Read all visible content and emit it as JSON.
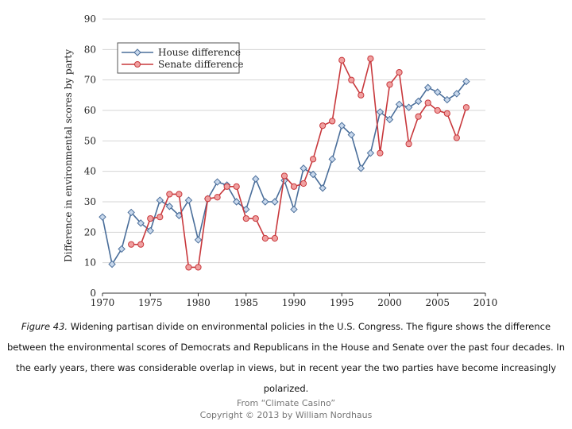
{
  "colors": {
    "house_line": "#4a6e9a",
    "house_marker_fill": "#c8d8ec",
    "senate_line": "#c8383c",
    "senate_marker_fill": "#f0a0a0"
  },
  "caption": {
    "figure_label": "Figure 43.",
    "text": " Widening partisan divide on environmental policies in the U.S. Congress. The figure shows the difference between the environmental scores of Democrats and Republicans in the House and Senate over the past four decades. In the early years, there was considerable overlap in views, but in recent year the two parties have become increasingly polarized."
  },
  "credit": {
    "line1": "From “Climate Casino”",
    "line2": "Copyright © 2013 by William Nordhaus"
  },
  "chart_data": {
    "type": "line",
    "title": "",
    "xlabel": "",
    "ylabel": "Difference in environmental scores by party",
    "xlim": [
      1970,
      2010
    ],
    "ylim": [
      0,
      90
    ],
    "xticks": [
      1970,
      1975,
      1980,
      1985,
      1990,
      1995,
      2000,
      2005,
      2010
    ],
    "yticks": [
      0,
      10,
      20,
      30,
      40,
      50,
      60,
      70,
      80,
      90
    ],
    "grid": "horizontal",
    "legend_position": "top-left",
    "series": [
      {
        "name": "House difference",
        "marker": "diamond",
        "points": [
          [
            1970,
            25
          ],
          [
            1971,
            9.5
          ],
          [
            1972,
            14.5
          ],
          [
            1973,
            26.5
          ],
          [
            1974,
            23
          ],
          [
            1975,
            20.5
          ],
          [
            1976,
            30.5
          ],
          [
            1977,
            28.5
          ],
          [
            1978,
            25.5
          ],
          [
            1979,
            30.5
          ],
          [
            1980,
            17.5
          ],
          [
            1981,
            31
          ],
          [
            1982,
            36.5
          ],
          [
            1983,
            35.5
          ],
          [
            1984,
            30
          ],
          [
            1985,
            27.5
          ],
          [
            1986,
            37.5
          ],
          [
            1987,
            30
          ],
          [
            1988,
            30
          ],
          [
            1989,
            37
          ],
          [
            1990,
            27.5
          ],
          [
            1991,
            41
          ],
          [
            1992,
            39
          ],
          [
            1993,
            34.5
          ],
          [
            1994,
            44
          ],
          [
            1995,
            55
          ],
          [
            1996,
            52
          ],
          [
            1997,
            41
          ],
          [
            1998,
            46
          ],
          [
            1999,
            59.5
          ],
          [
            2000,
            57
          ],
          [
            2001,
            62
          ],
          [
            2002,
            61
          ],
          [
            2003,
            63
          ],
          [
            2004,
            67.5
          ],
          [
            2005,
            66
          ],
          [
            2006,
            63.5
          ],
          [
            2007,
            65.5
          ],
          [
            2008,
            69.5
          ]
        ]
      },
      {
        "name": "Senate difference",
        "marker": "circle",
        "points": [
          [
            1973,
            16
          ],
          [
            1974,
            16
          ],
          [
            1975,
            24.5
          ],
          [
            1976,
            25
          ],
          [
            1977,
            32.5
          ],
          [
            1978,
            32.5
          ],
          [
            1979,
            8.5
          ],
          [
            1980,
            8.5
          ],
          [
            1981,
            31
          ],
          [
            1982,
            31.5
          ],
          [
            1983,
            35
          ],
          [
            1984,
            35
          ],
          [
            1985,
            24.5
          ],
          [
            1986,
            24.5
          ],
          [
            1987,
            18
          ],
          [
            1988,
            18
          ],
          [
            1989,
            38.5
          ],
          [
            1990,
            35
          ],
          [
            1991,
            36
          ],
          [
            1992,
            44
          ],
          [
            1993,
            55
          ],
          [
            1994,
            56.5
          ],
          [
            1995,
            76.5
          ],
          [
            1996,
            70
          ],
          [
            1997,
            65
          ],
          [
            1998,
            77
          ],
          [
            1999,
            46
          ],
          [
            2000,
            68.5
          ],
          [
            2001,
            72.5
          ],
          [
            2002,
            49
          ],
          [
            2003,
            58
          ],
          [
            2004,
            62.5
          ],
          [
            2005,
            60
          ],
          [
            2006,
            59
          ],
          [
            2007,
            51
          ],
          [
            2008,
            61
          ]
        ]
      }
    ]
  }
}
